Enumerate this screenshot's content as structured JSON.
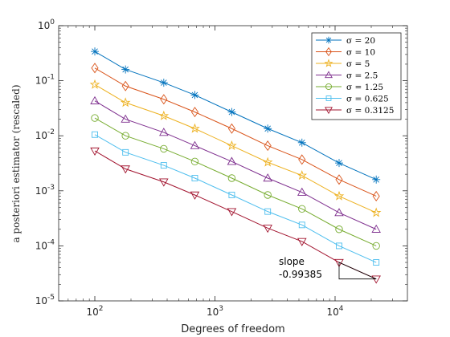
{
  "chart_data": {
    "type": "line",
    "xscale": "log",
    "yscale": "log",
    "xlabel": "Degrees of freedom",
    "ylabel": "a posteriori estimator (rescaled)",
    "xlim": [
      50,
      40000
    ],
    "ylim": [
      1e-05,
      1
    ],
    "xticks": [
      {
        "value": 100,
        "base": "10",
        "exp": "2"
      },
      {
        "value": 1000,
        "base": "10",
        "exp": "3"
      },
      {
        "value": 10000,
        "base": "10",
        "exp": "4"
      }
    ],
    "yticks": [
      {
        "value": 1,
        "base": "10",
        "exp": "0"
      },
      {
        "value": 0.1,
        "base": "10",
        "exp": "-1"
      },
      {
        "value": 0.01,
        "base": "10",
        "exp": "-2"
      },
      {
        "value": 0.001,
        "base": "10",
        "exp": "-3"
      },
      {
        "value": 0.0001,
        "base": "10",
        "exp": "-4"
      },
      {
        "value": 1e-05,
        "base": "10",
        "exp": "-5"
      }
    ],
    "x": [
      100,
      180,
      375,
      680,
      1380,
      2750,
      5300,
      10800,
      22000
    ],
    "legend_position": "top-right",
    "series": [
      {
        "name": "σ = 20",
        "color": "#0072BD",
        "marker": "asterisk",
        "values": [
          0.34,
          0.16,
          0.092,
          0.055,
          0.027,
          0.0135,
          0.0075,
          0.0032,
          0.0016
        ]
      },
      {
        "name": "σ = 10",
        "color": "#D95319",
        "marker": "diamond",
        "values": [
          0.17,
          0.08,
          0.046,
          0.027,
          0.0135,
          0.0066,
          0.0037,
          0.0016,
          0.0008
        ]
      },
      {
        "name": "σ = 5",
        "color": "#EDB120",
        "marker": "star",
        "values": [
          0.085,
          0.04,
          0.023,
          0.0135,
          0.0066,
          0.0033,
          0.0019,
          0.0008,
          0.0004
        ]
      },
      {
        "name": "σ = 2.5",
        "color": "#7E2F8E",
        "marker": "triangle-up",
        "values": [
          0.043,
          0.02,
          0.0115,
          0.0066,
          0.0034,
          0.0017,
          0.00094,
          0.0004,
          0.0002
        ]
      },
      {
        "name": "σ = 1.25",
        "color": "#77AC30",
        "marker": "circle",
        "values": [
          0.021,
          0.01,
          0.0058,
          0.0034,
          0.0017,
          0.00084,
          0.00047,
          0.0002,
          0.0001
        ]
      },
      {
        "name": "σ = 0.625",
        "color": "#4DBEEE",
        "marker": "square",
        "values": [
          0.0105,
          0.005,
          0.0029,
          0.0017,
          0.00084,
          0.00042,
          0.00024,
          0.0001,
          5e-05
        ]
      },
      {
        "name": "σ = 0.3125",
        "color": "#A2142F",
        "marker": "triangle-down",
        "values": [
          0.0053,
          0.0025,
          0.00145,
          0.00084,
          0.00042,
          0.00021,
          0.00012,
          5e-05,
          2.5e-05
        ]
      }
    ],
    "annotation": {
      "line1": "slope",
      "line2": "-0.99385",
      "triangle": [
        [
          10800,
          5e-05
        ],
        [
          22000,
          2.5e-05
        ]
      ]
    }
  }
}
